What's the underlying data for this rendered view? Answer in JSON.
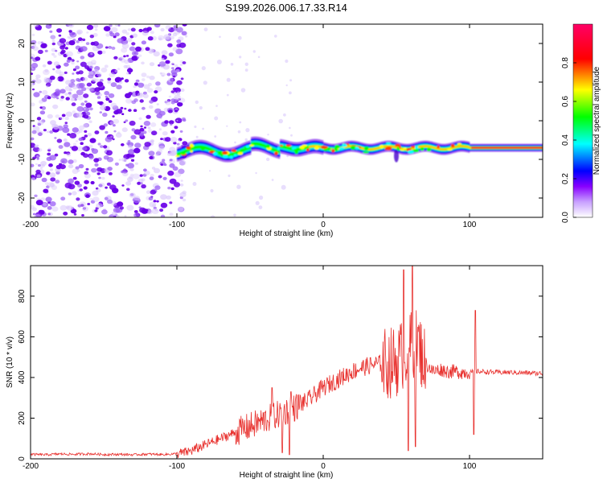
{
  "title": "S199.2026.006.17.33.R14",
  "chart_data": [
    {
      "type": "heatmap",
      "xlabel": "Height of straight line (km)",
      "ylabel": "Frequency (Hz)",
      "xlim": [
        -200,
        150
      ],
      "ylim": [
        -25,
        25
      ],
      "xticks": [
        -200,
        -100,
        0,
        100
      ],
      "yticks": [
        -20,
        -10,
        0,
        10,
        20
      ],
      "colorbar": {
        "label": "Normalized spectral amplitude",
        "range": [
          0,
          1
        ],
        "ticks": [
          0.0,
          0.2,
          0.4,
          0.6,
          0.8
        ],
        "colors": [
          "#ffffff",
          "#8800ff",
          "#0000ff",
          "#00ffff",
          "#00ff00",
          "#ffff00",
          "#ff0000",
          "#ff0066"
        ]
      },
      "features": {
        "noise_region_x": [
          -200,
          -100
        ],
        "noise_color": "#8c3cf0",
        "line_frequency": -7,
        "line_start_x": -100,
        "line_end_x": 150
      }
    },
    {
      "type": "line",
      "xlabel": "Height of straight line (km)",
      "ylabel": "SNR (10 * v/v)",
      "xlim": [
        -200,
        150
      ],
      "ylim": [
        0,
        950
      ],
      "xticks": [
        -200,
        -100,
        0,
        100
      ],
      "yticks": [
        0,
        200,
        400,
        600,
        800
      ],
      "line_color": "#e8312e",
      "x": [
        -200,
        -190,
        -180,
        -170,
        -160,
        -150,
        -140,
        -130,
        -120,
        -110,
        -100,
        -95,
        -90,
        -85,
        -80,
        -75,
        -70,
        -65,
        -60,
        -55,
        -50,
        -45,
        -40,
        -35,
        -30,
        -25,
        -20,
        -15,
        -10,
        -5,
        0,
        5,
        10,
        15,
        20,
        25,
        30,
        35,
        40,
        45,
        50,
        55,
        60,
        65,
        70,
        75,
        80,
        85,
        90,
        95,
        100,
        105,
        110,
        120,
        130,
        140,
        150
      ],
      "values": [
        22,
        20,
        24,
        22,
        25,
        21,
        22,
        20,
        23,
        21,
        25,
        30,
        40,
        55,
        70,
        85,
        100,
        115,
        130,
        145,
        160,
        175,
        190,
        205,
        220,
        235,
        250,
        270,
        290,
        320,
        350,
        370,
        390,
        410,
        430,
        445,
        455,
        465,
        470,
        470,
        480,
        520,
        560,
        560,
        470,
        430,
        440,
        430,
        430,
        425,
        425,
        430,
        428,
        425,
        425,
        422,
        420
      ],
      "peaks": [
        {
          "x": 55,
          "y": 930
        },
        {
          "x": 61,
          "y": 950
        },
        {
          "x": 63,
          "y": 870
        },
        {
          "x": 104,
          "y": 730
        },
        {
          "x": -35,
          "y": 350
        },
        {
          "x": -22,
          "y": 330
        }
      ],
      "dips": [
        {
          "x": 58,
          "y": 40
        },
        {
          "x": 63,
          "y": 60
        },
        {
          "x": 103,
          "y": 120
        },
        {
          "x": -23,
          "y": 20
        },
        {
          "x": -28,
          "y": 30
        }
      ]
    }
  ]
}
